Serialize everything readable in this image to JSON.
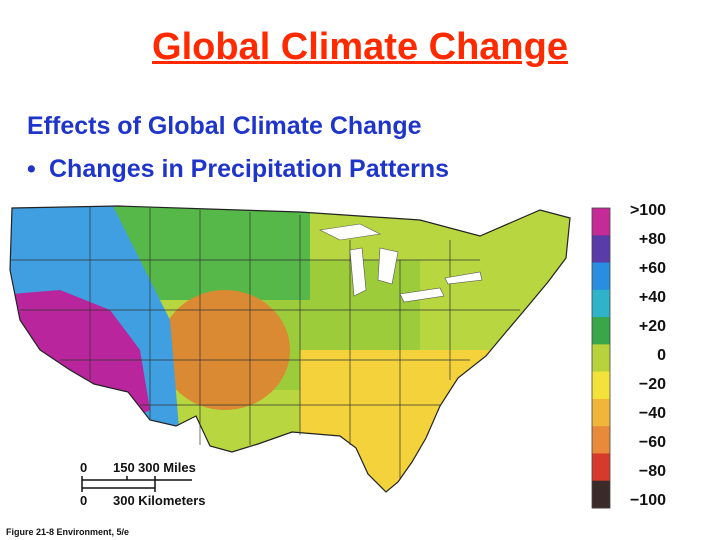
{
  "slide": {
    "title": "Global Climate Change",
    "subtitle": "Effects of Global Climate Change",
    "bullet": "Changes in Precipitation Patterns",
    "bullet_symbol": "•",
    "caption": "Figure 21-8  Environment, 5/e"
  },
  "map": {
    "region": "contiguous United States",
    "variable": "precipitation change",
    "regions": [
      {
        "name": "west-coast",
        "color": "#b8259c"
      },
      {
        "name": "interior-west",
        "color": "#3f9fe0"
      },
      {
        "name": "northern-plains",
        "color": "#56b848"
      },
      {
        "name": "southern-plains",
        "color": "#d98a32"
      },
      {
        "name": "midwest",
        "color": "#9ccc3a"
      },
      {
        "name": "southeast",
        "color": "#f3d23b"
      },
      {
        "name": "northeast",
        "color": "#b8d640"
      }
    ]
  },
  "legend": {
    "labels": [
      ">100",
      "+80",
      "+60",
      "+40",
      "+20",
      "0",
      "−20",
      "−40",
      "−60",
      "−80",
      "−100"
    ],
    "colors": [
      "#c62a96",
      "#5a3ca8",
      "#2a8ee0",
      "#2fb3c8",
      "#3aa64a",
      "#b7d23a",
      "#f3e23a",
      "#f1b53a",
      "#e98a3a",
      "#d63a2a",
      "#3a2a2a"
    ]
  },
  "scale_bar": {
    "miles_ticks": [
      "0",
      "150",
      "300 Miles"
    ],
    "km_ticks": [
      "0",
      "300 Kilometers"
    ]
  }
}
